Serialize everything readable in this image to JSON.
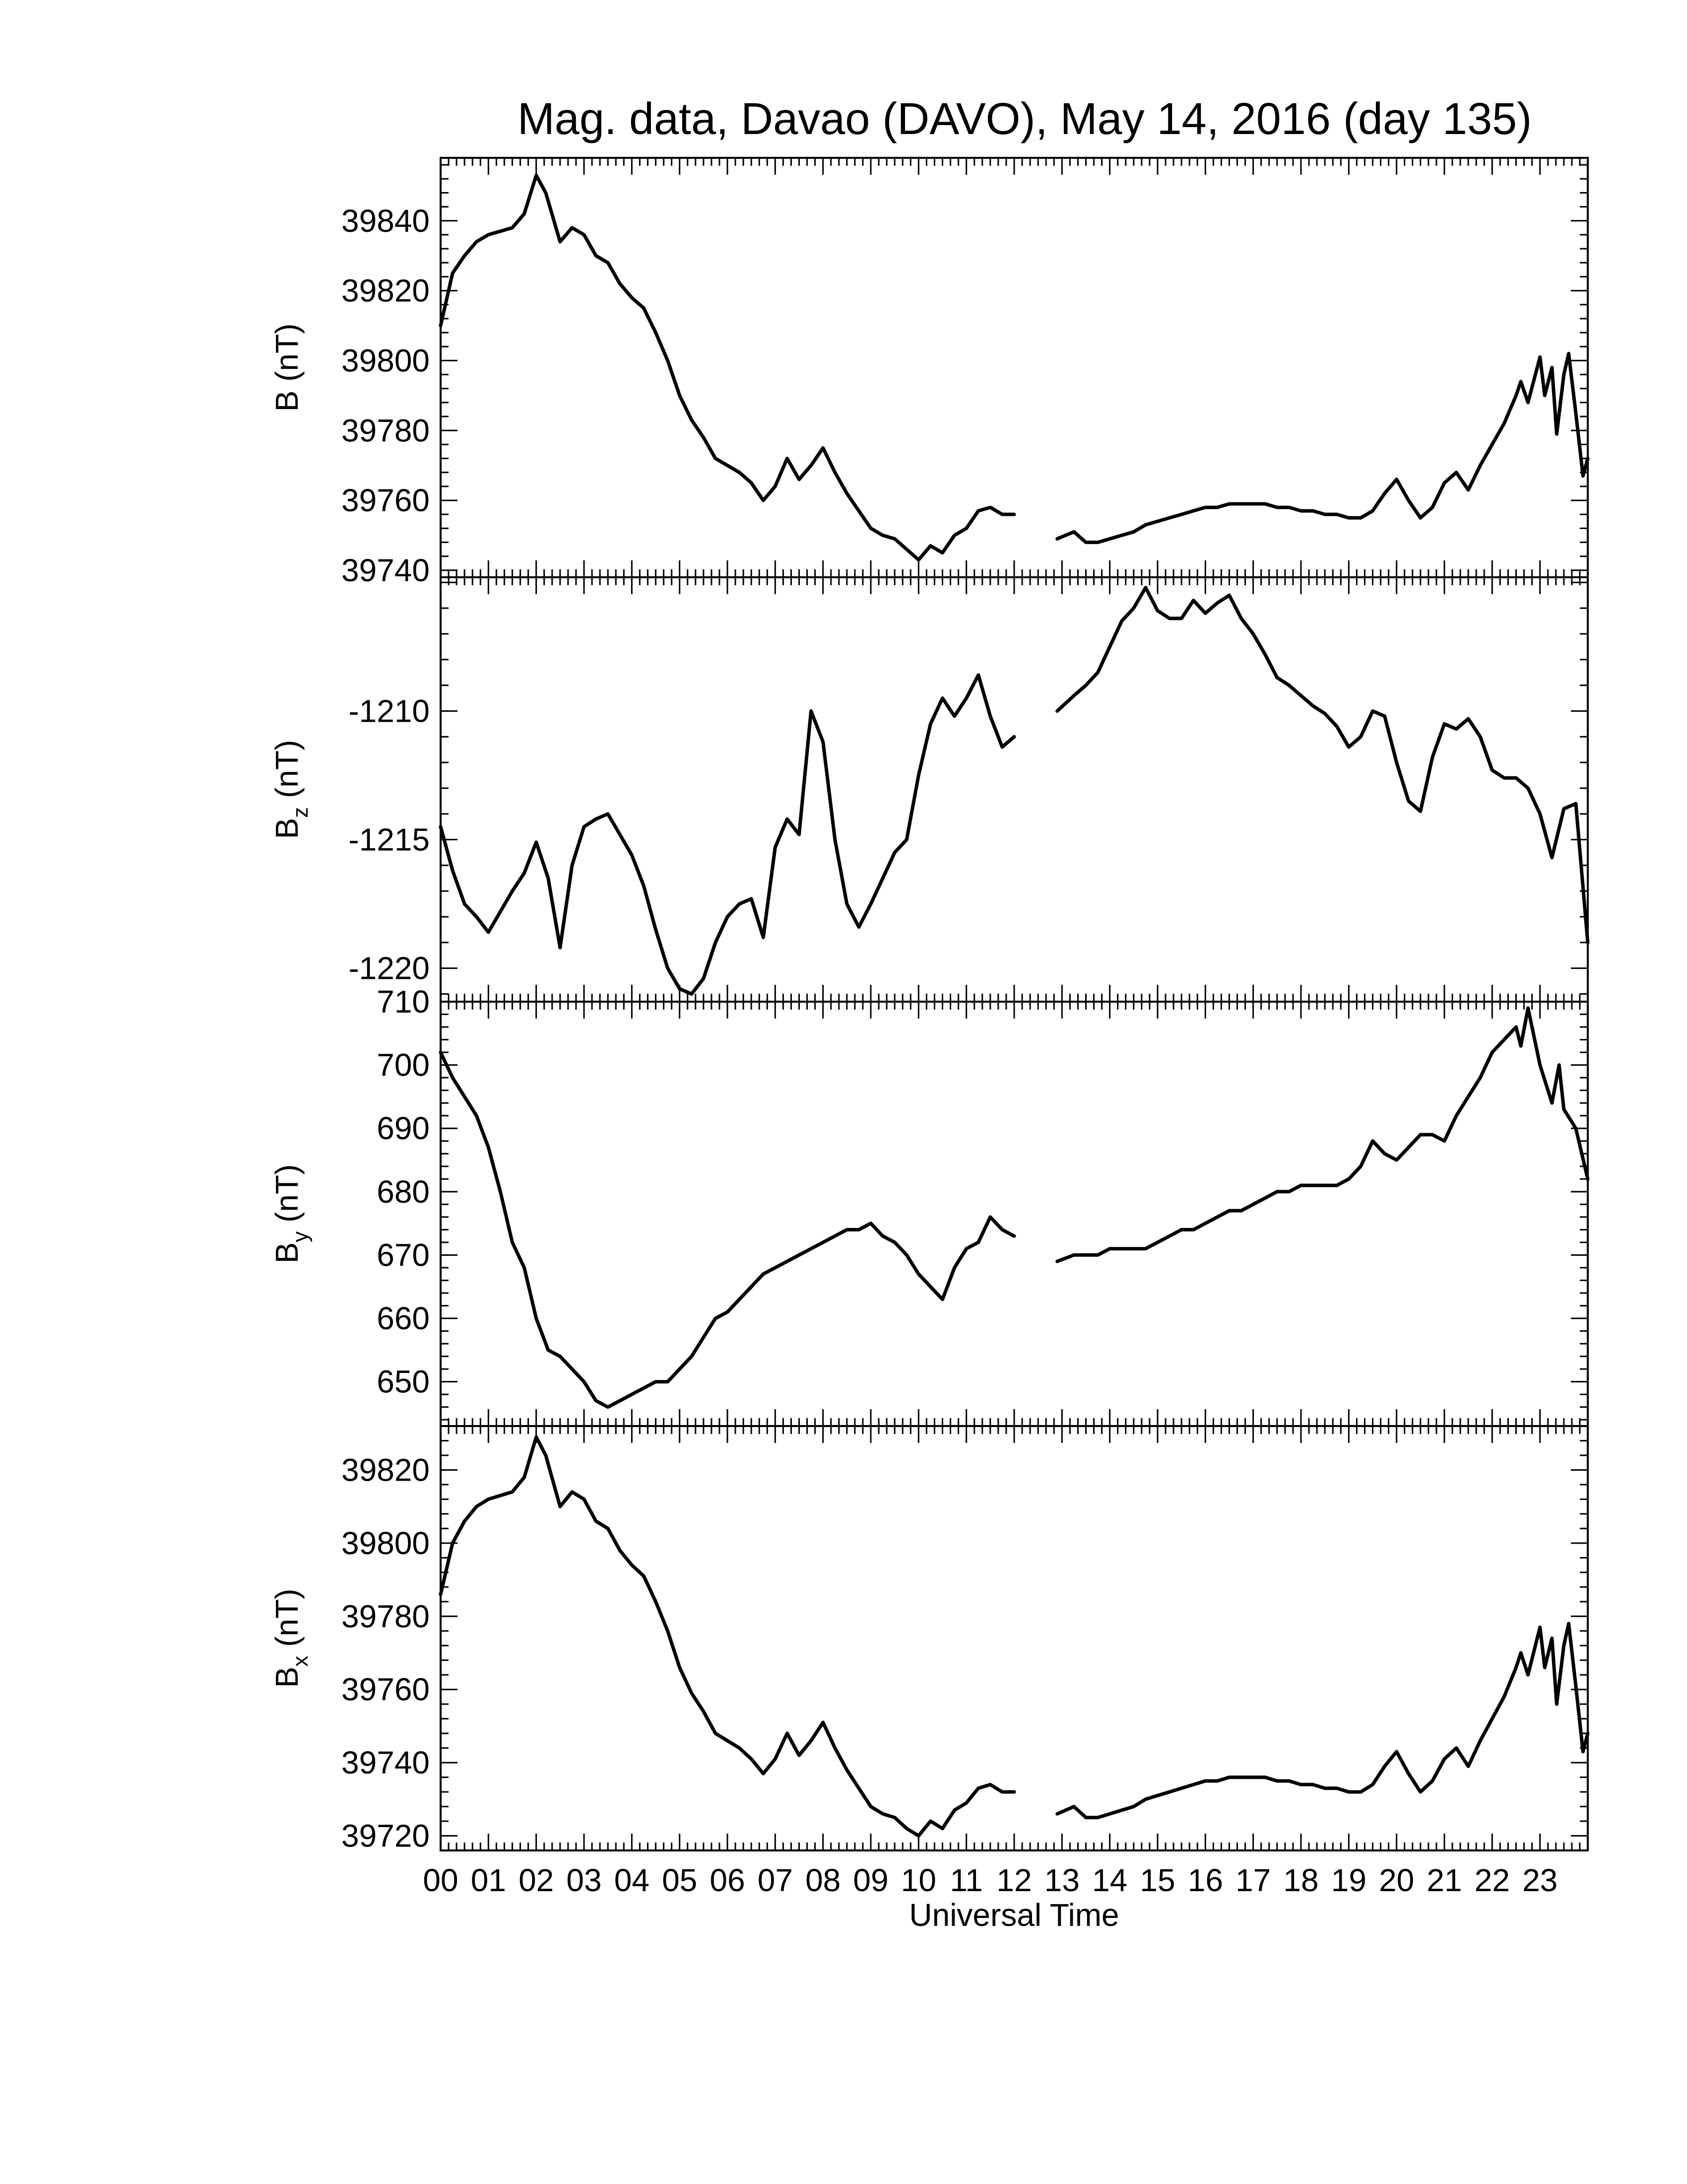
{
  "chart_data": {
    "type": "line",
    "title": "Mag. data, Davao (DAVO), May 14, 2016 (day 135)",
    "xlabel": "Universal Time",
    "x_tick_labels": [
      "00",
      "01",
      "02",
      "03",
      "04",
      "05",
      "06",
      "07",
      "08",
      "09",
      "10",
      "11",
      "12",
      "13",
      "14",
      "15",
      "16",
      "17",
      "18",
      "19",
      "20",
      "21",
      "22",
      "23"
    ],
    "xlim": [
      0,
      24
    ],
    "grid": false,
    "panels": [
      {
        "id": "B",
        "ylabel": "B (nT)",
        "ylabel_main": "B",
        "ylabel_sub": "",
        "ylabel_unit": " (nT)",
        "ylim": [
          39738,
          39858
        ],
        "yticks": [
          39740,
          39760,
          39780,
          39800,
          39820,
          39840
        ],
        "series": [
          {
            "x": [
              0.0,
              0.25,
              0.5,
              0.75,
              1.0,
              1.25,
              1.5,
              1.75,
              2.0,
              2.2,
              2.5,
              2.75,
              3.0,
              3.25,
              3.5,
              3.75,
              4.0,
              4.25,
              4.5,
              4.75,
              5.0,
              5.25,
              5.5,
              5.75,
              6.0,
              6.25,
              6.5,
              6.75,
              7.0,
              7.25,
              7.5,
              7.75,
              8.0,
              8.25,
              8.5,
              8.75,
              9.0,
              9.25,
              9.5,
              9.75,
              10.0,
              10.25,
              10.5,
              10.75,
              11.0,
              11.25,
              11.5,
              11.75,
              12.0,
              null,
              12.9,
              13.25,
              13.5,
              13.75,
              14.0,
              14.25,
              14.5,
              14.75,
              15.0,
              15.25,
              15.5,
              15.75,
              16.0,
              16.25,
              16.5,
              16.75,
              17.0,
              17.25,
              17.5,
              17.75,
              18.0,
              18.25,
              18.5,
              18.75,
              19.0,
              19.25,
              19.5,
              19.75,
              20.0,
              20.25,
              20.5,
              20.75,
              21.0,
              21.25,
              21.5,
              21.75,
              22.0,
              22.25,
              22.5,
              22.6,
              22.75,
              23.0,
              23.1,
              23.25,
              23.35,
              23.5,
              23.6,
              23.75,
              23.9,
              24.0
            ],
            "y": [
              39810,
              39825,
              39830,
              39834,
              39836,
              39837,
              39838,
              39842,
              39853,
              39848,
              39834,
              39838,
              39836,
              39830,
              39828,
              39822,
              39818,
              39815,
              39808,
              39800,
              39790,
              39783,
              39778,
              39772,
              39770,
              39768,
              39765,
              39760,
              39764,
              39772,
              39766,
              39770,
              39775,
              39768,
              39762,
              39757,
              39752,
              39750,
              39749,
              39746,
              39743,
              39747,
              39745,
              39750,
              39752,
              39757,
              39758,
              39756,
              39756,
              null,
              39749,
              39751,
              39748,
              39748,
              39749,
              39750,
              39751,
              39753,
              39754,
              39755,
              39756,
              39757,
              39758,
              39758,
              39759,
              39759,
              39759,
              39759,
              39758,
              39758,
              39757,
              39757,
              39756,
              39756,
              39755,
              39755,
              39757,
              39762,
              39766,
              39760,
              39755,
              39758,
              39765,
              39768,
              39763,
              39770,
              39776,
              39782,
              39790,
              39794,
              39788,
              39801,
              39790,
              39798,
              39779,
              39796,
              39802,
              39785,
              39767,
              39772
            ]
          }
        ]
      },
      {
        "id": "Bz",
        "ylabel": "Bz (nT)",
        "ylabel_main": "B",
        "ylabel_sub": "z",
        "ylabel_unit": " (nT)",
        "ylim": [
          -1221.3,
          -1204.8
        ],
        "yticks": [
          -1220,
          -1215,
          -1210
        ],
        "ytick_labels": [
          "-1220",
          "-1215",
          "-1210"
        ],
        "series": [
          {
            "x": [
              0.0,
              0.25,
              0.5,
              0.75,
              1.0,
              1.25,
              1.5,
              1.75,
              2.0,
              2.25,
              2.5,
              2.75,
              3.0,
              3.25,
              3.5,
              3.75,
              4.0,
              4.25,
              4.5,
              4.75,
              5.0,
              5.25,
              5.5,
              5.75,
              6.0,
              6.25,
              6.5,
              6.75,
              7.0,
              7.25,
              7.5,
              7.75,
              8.0,
              8.25,
              8.5,
              8.75,
              9.0,
              9.25,
              9.5,
              9.75,
              10.0,
              10.25,
              10.5,
              10.75,
              11.0,
              11.25,
              11.5,
              11.75,
              12.0,
              null,
              12.9,
              13.25,
              13.5,
              13.75,
              14.0,
              14.25,
              14.5,
              14.75,
              15.0,
              15.25,
              15.5,
              15.75,
              16.0,
              16.25,
              16.5,
              16.75,
              17.0,
              17.25,
              17.5,
              17.75,
              18.0,
              18.25,
              18.5,
              18.75,
              19.0,
              19.25,
              19.5,
              19.75,
              20.0,
              20.25,
              20.5,
              20.75,
              21.0,
              21.25,
              21.5,
              21.75,
              22.0,
              22.25,
              22.5,
              22.75,
              23.0,
              23.25,
              23.5,
              23.75,
              24.0
            ],
            "y": [
              -1214.5,
              -1216.2,
              -1217.5,
              -1218.0,
              -1218.6,
              -1217.8,
              -1217.0,
              -1216.3,
              -1215.1,
              -1216.5,
              -1219.2,
              -1216.0,
              -1214.5,
              -1214.2,
              -1214.0,
              -1214.8,
              -1215.6,
              -1216.8,
              -1218.5,
              -1220.0,
              -1220.8,
              -1221.0,
              -1220.4,
              -1219.0,
              -1218.0,
              -1217.5,
              -1217.3,
              -1218.8,
              -1215.3,
              -1214.2,
              -1214.8,
              -1210.0,
              -1211.2,
              -1215.0,
              -1217.5,
              -1218.4,
              -1217.5,
              -1216.5,
              -1215.5,
              -1215.0,
              -1212.5,
              -1210.5,
              -1209.5,
              -1210.2,
              -1209.5,
              -1208.6,
              -1210.2,
              -1211.4,
              -1211.0,
              null,
              -1210.0,
              -1209.4,
              -1209.0,
              -1208.5,
              -1207.5,
              -1206.5,
              -1206.0,
              -1205.2,
              -1206.1,
              -1206.4,
              -1206.4,
              -1205.7,
              -1206.2,
              -1205.8,
              -1205.5,
              -1206.4,
              -1207.0,
              -1207.8,
              -1208.7,
              -1209.0,
              -1209.4,
              -1209.8,
              -1210.1,
              -1210.6,
              -1211.4,
              -1211.0,
              -1210.0,
              -1210.2,
              -1212.0,
              -1213.5,
              -1213.9,
              -1211.8,
              -1210.5,
              -1210.7,
              -1210.3,
              -1211.0,
              -1212.3,
              -1212.6,
              -1212.6,
              -1213.0,
              -1214.0,
              -1215.7,
              -1213.8,
              -1213.6,
              -1219.0
            ]
          }
        ]
      },
      {
        "id": "By",
        "ylabel": "By (nT)",
        "ylabel_main": "B",
        "ylabel_sub": "y",
        "ylabel_unit": " (nT)",
        "ylim": [
          643,
          710
        ],
        "yticks": [
          650,
          660,
          670,
          680,
          690,
          700,
          710
        ],
        "series": [
          {
            "x": [
              0.0,
              0.25,
              0.5,
              0.75,
              1.0,
              1.25,
              1.5,
              1.75,
              2.0,
              2.25,
              2.5,
              2.75,
              3.0,
              3.25,
              3.5,
              3.75,
              4.0,
              4.25,
              4.5,
              4.75,
              5.0,
              5.25,
              5.5,
              5.75,
              6.0,
              6.25,
              6.5,
              6.75,
              7.0,
              7.25,
              7.5,
              7.75,
              8.0,
              8.25,
              8.5,
              8.75,
              9.0,
              9.25,
              9.5,
              9.75,
              10.0,
              10.25,
              10.5,
              10.75,
              11.0,
              11.25,
              11.5,
              11.75,
              12.0,
              null,
              12.9,
              13.25,
              13.5,
              13.75,
              14.0,
              14.25,
              14.5,
              14.75,
              15.0,
              15.25,
              15.5,
              15.75,
              16.0,
              16.25,
              16.5,
              16.75,
              17.0,
              17.25,
              17.5,
              17.75,
              18.0,
              18.25,
              18.5,
              18.75,
              19.0,
              19.25,
              19.5,
              19.75,
              20.0,
              20.25,
              20.5,
              20.75,
              21.0,
              21.25,
              21.5,
              21.75,
              22.0,
              22.25,
              22.5,
              22.6,
              22.75,
              23.0,
              23.25,
              23.4,
              23.5,
              23.75,
              24.0
            ],
            "y": [
              702,
              698,
              695,
              692,
              687,
              680,
              672,
              668,
              660,
              655,
              654,
              652,
              650,
              647,
              646,
              647,
              648,
              649,
              650,
              650,
              652,
              654,
              657,
              660,
              661,
              663,
              665,
              667,
              668,
              669,
              670,
              671,
              672,
              673,
              674,
              674,
              675,
              673,
              672,
              670,
              667,
              665,
              663,
              668,
              671,
              672,
              676,
              674,
              673,
              null,
              669,
              670,
              670,
              670,
              671,
              671,
              671,
              671,
              672,
              673,
              674,
              674,
              675,
              676,
              677,
              677,
              678,
              679,
              680,
              680,
              681,
              681,
              681,
              681,
              682,
              684,
              688,
              686,
              685,
              687,
              689,
              689,
              688,
              692,
              695,
              698,
              702,
              704,
              706,
              703,
              709,
              700,
              694,
              700,
              693,
              690,
              682
            ]
          }
        ]
      },
      {
        "id": "Bx",
        "ylabel": "Bx (nT)",
        "ylabel_main": "B",
        "ylabel_sub": "x",
        "ylabel_unit": " (nT)",
        "ylim": [
          39716,
          39832
        ],
        "yticks": [
          39720,
          39740,
          39760,
          39780,
          39800,
          39820
        ],
        "series": [
          {
            "x": [
              0.0,
              0.25,
              0.5,
              0.75,
              1.0,
              1.25,
              1.5,
              1.75,
              2.0,
              2.2,
              2.5,
              2.75,
              3.0,
              3.25,
              3.5,
              3.75,
              4.0,
              4.25,
              4.5,
              4.75,
              5.0,
              5.25,
              5.5,
              5.75,
              6.0,
              6.25,
              6.5,
              6.75,
              7.0,
              7.25,
              7.5,
              7.75,
              8.0,
              8.25,
              8.5,
              8.75,
              9.0,
              9.25,
              9.5,
              9.75,
              10.0,
              10.25,
              10.5,
              10.75,
              11.0,
              11.25,
              11.5,
              11.75,
              12.0,
              null,
              12.9,
              13.25,
              13.5,
              13.75,
              14.0,
              14.25,
              14.5,
              14.75,
              15.0,
              15.25,
              15.5,
              15.75,
              16.0,
              16.25,
              16.5,
              16.75,
              17.0,
              17.25,
              17.5,
              17.75,
              18.0,
              18.25,
              18.5,
              18.75,
              19.0,
              19.25,
              19.5,
              19.75,
              20.0,
              20.25,
              20.5,
              20.75,
              21.0,
              21.25,
              21.5,
              21.75,
              22.0,
              22.25,
              22.5,
              22.6,
              22.75,
              23.0,
              23.1,
              23.25,
              23.35,
              23.5,
              23.6,
              23.75,
              23.9,
              24.0
            ],
            "y": [
              39786,
              39800,
              39806,
              39810,
              39812,
              39813,
              39814,
              39818,
              39829,
              39824,
              39810,
              39814,
              39812,
              39806,
              39804,
              39798,
              39794,
              39791,
              39784,
              39776,
              39766,
              39759,
              39754,
              39748,
              39746,
              39744,
              39741,
              39737,
              39741,
              39748,
              39742,
              39746,
              39751,
              39744,
              39738,
              39733,
              39728,
              39726,
              39725,
              39722,
              39720,
              39724,
              39722,
              39727,
              39729,
              39733,
              39734,
              39732,
              39732,
              null,
              39726,
              39728,
              39725,
              39725,
              39726,
              39727,
              39728,
              39730,
              39731,
              39732,
              39733,
              39734,
              39735,
              39735,
              39736,
              39736,
              39736,
              39736,
              39735,
              39735,
              39734,
              39734,
              39733,
              39733,
              39732,
              39732,
              39734,
              39739,
              39743,
              39737,
              39732,
              39735,
              39741,
              39744,
              39739,
              39746,
              39752,
              39758,
              39766,
              39770,
              39764,
              39777,
              39766,
              39774,
              39756,
              39772,
              39778,
              39761,
              39743,
              39748
            ]
          }
        ]
      }
    ]
  }
}
